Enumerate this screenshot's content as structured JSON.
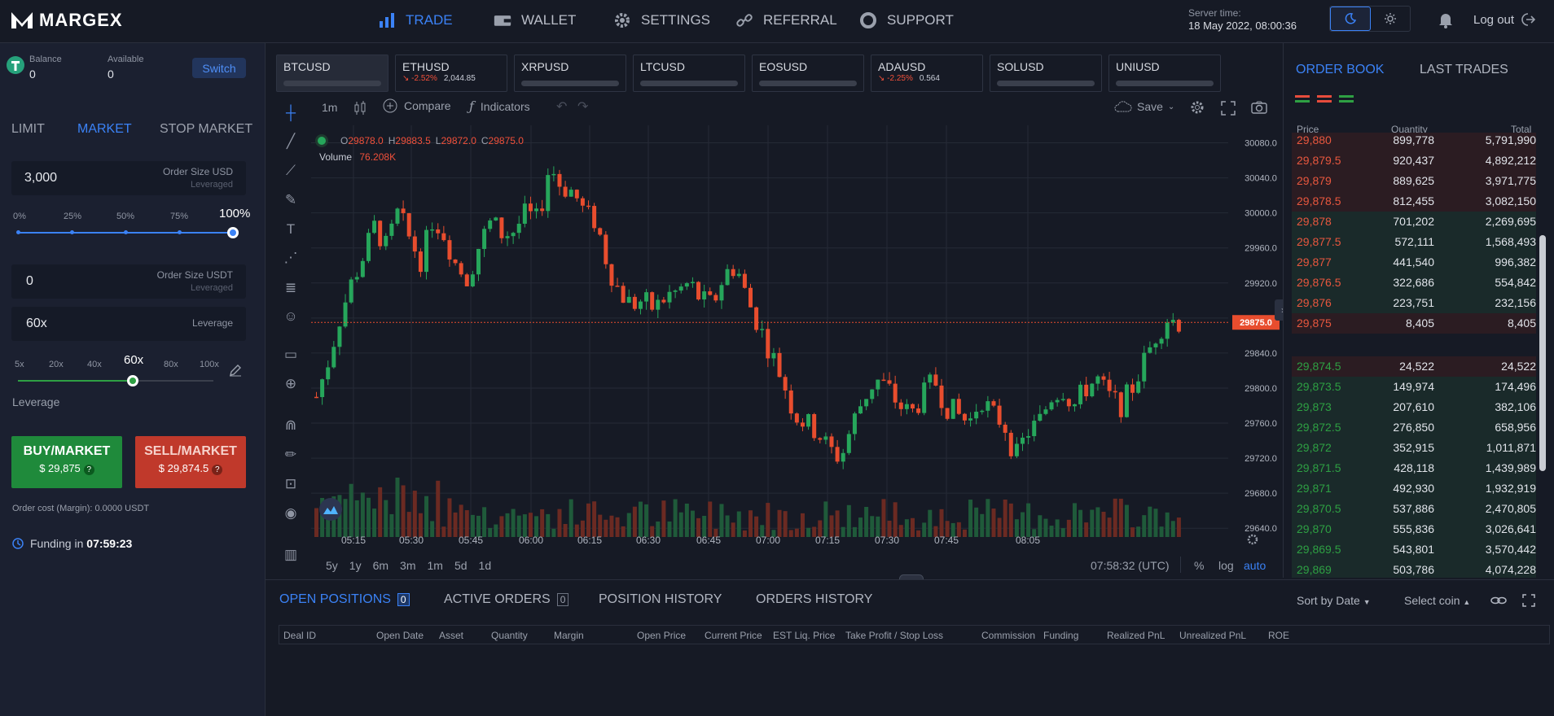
{
  "brand": {
    "name": "MARGEX"
  },
  "nav": [
    {
      "label": "TRADE",
      "icon": "bar-chart-icon"
    },
    {
      "label": "WALLET",
      "icon": "wallet-icon"
    },
    {
      "label": "SETTINGS",
      "icon": "gear-icon"
    },
    {
      "label": "REFERRAL",
      "icon": "link-icon"
    },
    {
      "label": "SUPPORT",
      "icon": "lifebuoy-icon"
    }
  ],
  "server": {
    "label": "Server time:",
    "time": "18 May 2022, 08:00:36"
  },
  "logout": "Log out",
  "account": {
    "balance_label": "Balance",
    "balance": "0",
    "available_label": "Available",
    "available": "0",
    "switch": "Switch"
  },
  "order": {
    "tabs": [
      "LIMIT",
      "MARKET",
      "STOP MARKET"
    ],
    "size_usd": {
      "value": "3,000",
      "label": "Order Size USD",
      "sub": "Leveraged"
    },
    "pct_ticks": [
      "0%",
      "25%",
      "50%",
      "75%",
      "100%"
    ],
    "size_usdt": {
      "value": "0",
      "label": "Order Size USDT",
      "sub": "Leveraged"
    },
    "leverage": {
      "value": "60x",
      "label": "Leverage"
    },
    "lev_ticks": [
      "5x",
      "20x",
      "40x",
      "60x",
      "80x",
      "100x"
    ],
    "leverage_caption": "Leverage",
    "buy": {
      "label": "BUY/MARKET",
      "price": "$ 29,875"
    },
    "sell": {
      "label": "SELL/MARKET",
      "price": "$ 29,874.5"
    },
    "cost": "Order cost (Margin): 0.0000 USDT",
    "funding_label": "Funding in",
    "funding_time": "07:59:23"
  },
  "symbols": [
    {
      "name": "BTCUSD",
      "chg": "",
      "price": ""
    },
    {
      "name": "ETHUSD",
      "chg": "-2.52%",
      "price": "2,044.85"
    },
    {
      "name": "XRPUSD",
      "chg": "",
      "price": ""
    },
    {
      "name": "LTCUSD",
      "chg": "",
      "price": ""
    },
    {
      "name": "EOSUSD",
      "chg": "",
      "price": ""
    },
    {
      "name": "ADAUSD",
      "chg": "-2.25%",
      "price": "0.564"
    },
    {
      "name": "SOLUSD",
      "chg": "",
      "price": ""
    },
    {
      "name": "UNIUSD",
      "chg": "",
      "price": ""
    }
  ],
  "chart_toolbar": {
    "interval": "1m",
    "compare": "Compare",
    "indicators": "Indicators",
    "save": "Save"
  },
  "ohlc": {
    "o": "29878.0",
    "h": "29883.5",
    "l": "29872.0",
    "c": "29875.0",
    "volume_label": "Volume",
    "volume": "76.208K"
  },
  "ranges": [
    "5y",
    "1y",
    "6m",
    "3m",
    "1m",
    "5d",
    "1d"
  ],
  "clock": "07:58:32 (UTC)",
  "scale_opts": [
    "%",
    "log",
    "auto"
  ],
  "chart_data": {
    "type": "candlestick",
    "x_ticks": [
      "05:15",
      "05:30",
      "05:45",
      "06:00",
      "06:15",
      "06:30",
      "06:45",
      "07:00",
      "07:15",
      "07:30",
      "07:45",
      "08:05"
    ],
    "y_ticks": [
      "30080.0",
      "30040.0",
      "30000.0",
      "29960.0",
      "29920.0",
      "29880.0",
      "29840.0",
      "29800.0",
      "29760.0",
      "29720.0",
      "29680.0",
      "29640.0"
    ],
    "ylim": [
      29630,
      30100
    ],
    "last_price": "29875.0",
    "close_path": [
      29790,
      29830,
      29880,
      29920,
      29950,
      29985,
      29960,
      30000,
      29970,
      29945,
      29995,
      29975,
      29940,
      29925,
      29965,
      29990,
      29975,
      29980,
      30000,
      29990,
      30055,
      30030,
      30025,
      30000,
      29990,
      29940,
      29910,
      29895,
      29900,
      29890,
      29905,
      29910,
      29920,
      29900,
      29895,
      29930,
      29940,
      29900,
      29870,
      29840,
      29810,
      29770,
      29760,
      29750,
      29730,
      29720,
      29760,
      29790,
      29810,
      29800,
      29780,
      29770,
      29790,
      29810,
      29780,
      29770,
      29760,
      29790,
      29770,
      29760,
      29720,
      29750,
      29760,
      29790,
      29800,
      29780,
      29800,
      29810,
      29790,
      29780,
      29800,
      29830,
      29860,
      29880,
      29875
    ]
  },
  "orderbook": {
    "tabs": [
      "ORDER BOOK",
      "LAST TRADES"
    ],
    "headers": [
      "Price",
      "Quantity",
      "Total"
    ],
    "asks": [
      [
        "29,880",
        "899,778",
        "5,791,990"
      ],
      [
        "29,879.5",
        "920,437",
        "4,892,212"
      ],
      [
        "29,879",
        "889,625",
        "3,971,775"
      ],
      [
        "29,878.5",
        "812,455",
        "3,082,150"
      ],
      [
        "29,878",
        "701,202",
        "2,269,695"
      ],
      [
        "29,877.5",
        "572,111",
        "1,568,493"
      ],
      [
        "29,877",
        "441,540",
        "996,382"
      ],
      [
        "29,876.5",
        "322,686",
        "554,842"
      ],
      [
        "29,876",
        "223,751",
        "232,156"
      ],
      [
        "29,875",
        "8,405",
        "8,405"
      ]
    ],
    "bids": [
      [
        "29,874.5",
        "24,522",
        "24,522"
      ],
      [
        "29,873.5",
        "149,974",
        "174,496"
      ],
      [
        "29,873",
        "207,610",
        "382,106"
      ],
      [
        "29,872.5",
        "276,850",
        "658,956"
      ],
      [
        "29,872",
        "352,915",
        "1,011,871"
      ],
      [
        "29,871.5",
        "428,118",
        "1,439,989"
      ],
      [
        "29,871",
        "492,930",
        "1,932,919"
      ],
      [
        "29,870.5",
        "537,886",
        "2,470,805"
      ],
      [
        "29,870",
        "555,836",
        "3,026,641"
      ],
      [
        "29,869.5",
        "543,801",
        "3,570,442"
      ],
      [
        "29,869",
        "503,786",
        "4,074,228"
      ]
    ]
  },
  "bottom": {
    "tabs": [
      {
        "label": "OPEN POSITIONS",
        "count": "0"
      },
      {
        "label": "ACTIVE ORDERS",
        "count": "0"
      },
      {
        "label": "POSITION HISTORY",
        "count": ""
      },
      {
        "label": "ORDERS HISTORY",
        "count": ""
      }
    ],
    "sort": "Sort by Date",
    "coin": "Select coin",
    "columns": [
      "Deal ID",
      "Open Date",
      "Asset",
      "Quantity",
      "Margin",
      "Open Price",
      "Current Price",
      "EST Liq. Price",
      "Take Profit / Stop Loss",
      "Commission",
      "Funding",
      "Realized PnL",
      "Unrealized PnL",
      "ROE"
    ]
  }
}
